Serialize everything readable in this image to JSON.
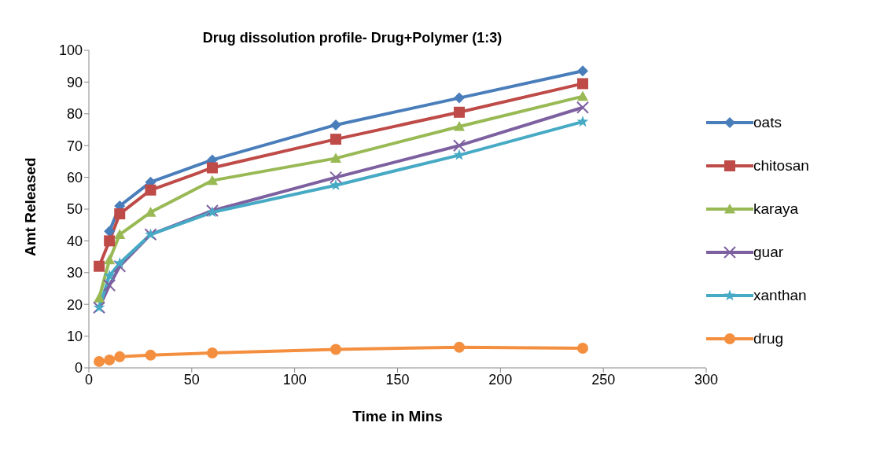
{
  "chart_data": {
    "type": "line",
    "title": "Drug dissolution profile- Drug+Polymer (1:3)",
    "xlabel": "Time in Mins",
    "ylabel": "Amt Released",
    "x": [
      5,
      10,
      15,
      30,
      60,
      120,
      180,
      240
    ],
    "series": [
      {
        "name": "oats",
        "color": "#4a7ebb",
        "marker": "diamond",
        "values": [
          null,
          43,
          51,
          58.5,
          65.5,
          76.5,
          85,
          93.5
        ]
      },
      {
        "name": "chitosan",
        "color": "#be4b48",
        "marker": "square",
        "values": [
          32,
          40,
          48.5,
          56,
          63,
          72,
          80.5,
          89.5
        ]
      },
      {
        "name": "karaya",
        "color": "#98b954",
        "marker": "triangle",
        "values": [
          22,
          34,
          42,
          49,
          59,
          66,
          76,
          85.5
        ]
      },
      {
        "name": "guar",
        "color": "#7d60a0",
        "marker": "cross",
        "values": [
          19,
          26,
          32,
          42,
          49.5,
          60,
          70,
          82
        ]
      },
      {
        "name": "xanthan",
        "color": "#46aac5",
        "marker": "star",
        "values": [
          19,
          29,
          33,
          42,
          49,
          57.5,
          67,
          77.5
        ]
      },
      {
        "name": "drug",
        "color": "#f38f3f",
        "marker": "circle",
        "values": [
          2,
          2.5,
          3.5,
          4,
          4.7,
          5.8,
          6.5,
          6.2
        ]
      }
    ],
    "xlim": [
      0,
      300
    ],
    "xticks": [
      0,
      50,
      100,
      150,
      200,
      250,
      300
    ],
    "ylim": [
      0,
      100
    ],
    "yticks": [
      0,
      10,
      20,
      30,
      40,
      50,
      60,
      70,
      80,
      90,
      100
    ],
    "grid": false,
    "legend": "right",
    "line_style": "solid"
  }
}
